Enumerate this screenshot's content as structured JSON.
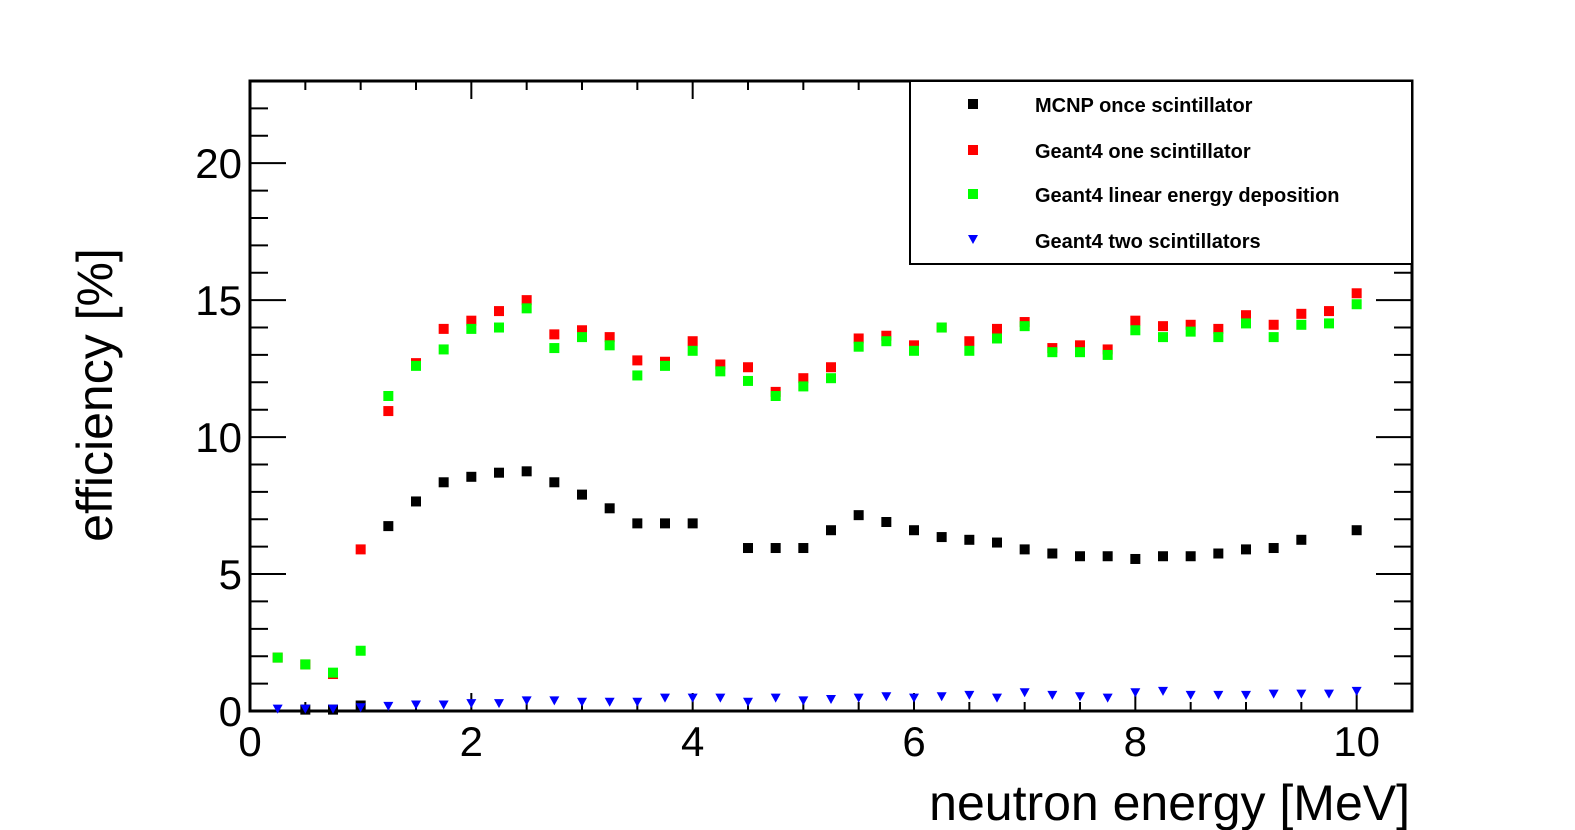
{
  "chart_data": {
    "type": "scatter",
    "title": "",
    "xlabel": "neutron energy [MeV]",
    "ylabel": "efficiency [%]",
    "xlim": [
      0,
      10.5
    ],
    "ylim": [
      0,
      23
    ],
    "x_ticks": [
      "0",
      "2",
      "4",
      "6",
      "8",
      "10"
    ],
    "y_ticks": [
      "0",
      "5",
      "10",
      "15",
      "20"
    ],
    "grid": false,
    "legend_position": "top-right",
    "series": [
      {
        "name": "MCNP once scintillator",
        "color": "#000000",
        "marker": "square",
        "x": [
          0.5,
          0.75,
          1.0,
          1.25,
          1.5,
          1.75,
          2.0,
          2.25,
          2.5,
          2.75,
          3.0,
          3.25,
          3.5,
          3.75,
          4.0,
          4.5,
          4.75,
          5.0,
          5.25,
          5.5,
          5.75,
          6.0,
          6.25,
          6.5,
          6.75,
          7.0,
          7.25,
          7.5,
          7.75,
          8.0,
          8.25,
          8.5,
          8.75,
          9.0,
          9.25,
          9.5,
          10.0
        ],
        "y": [
          0.05,
          0.05,
          0.2,
          6.75,
          7.65,
          8.35,
          8.55,
          8.7,
          8.75,
          8.35,
          7.9,
          7.4,
          6.85,
          6.85,
          6.85,
          5.95,
          5.95,
          5.95,
          6.6,
          7.15,
          6.9,
          6.6,
          6.35,
          6.25,
          6.15,
          5.9,
          5.75,
          5.65,
          5.65,
          5.55,
          5.65,
          5.65,
          5.75,
          5.9,
          5.95,
          6.25,
          6.6
        ]
      },
      {
        "name": "Geant4 one scintillator",
        "color": "#ff0000",
        "marker": "square",
        "x": [
          0.25,
          0.5,
          0.75,
          1.0,
          1.25,
          1.5,
          1.75,
          2.0,
          2.25,
          2.5,
          2.75,
          3.0,
          3.25,
          3.5,
          3.75,
          4.0,
          4.25,
          4.5,
          4.75,
          5.0,
          5.25,
          5.5,
          5.75,
          6.0,
          6.25,
          6.5,
          6.75,
          7.0,
          7.25,
          7.5,
          7.75,
          8.0,
          8.25,
          8.5,
          8.75,
          9.0,
          9.25,
          9.5,
          9.75,
          10.0
        ],
        "y": [
          1.95,
          1.7,
          1.35,
          5.9,
          10.95,
          12.7,
          13.95,
          14.25,
          14.6,
          15.0,
          13.75,
          13.9,
          13.65,
          12.8,
          12.75,
          13.5,
          12.65,
          12.55,
          11.65,
          12.15,
          12.55,
          13.6,
          13.7,
          13.35,
          14.0,
          13.5,
          13.95,
          14.2,
          13.25,
          13.35,
          13.2,
          14.25,
          14.05,
          14.1,
          13.95,
          14.45,
          14.1,
          14.5,
          14.6,
          15.25
        ]
      },
      {
        "name": "Geant4 linear energy deposition",
        "color": "#00ff00",
        "marker": "square",
        "x": [
          0.25,
          0.5,
          0.75,
          1.0,
          1.25,
          1.5,
          1.75,
          2.0,
          2.25,
          2.5,
          2.75,
          3.0,
          3.25,
          3.5,
          3.75,
          4.0,
          4.25,
          4.5,
          4.75,
          5.0,
          5.25,
          5.5,
          5.75,
          6.0,
          6.25,
          6.5,
          6.75,
          7.0,
          7.25,
          7.5,
          7.75,
          8.0,
          8.25,
          8.5,
          8.75,
          9.0,
          9.25,
          9.5,
          9.75,
          10.0
        ],
        "y": [
          1.95,
          1.7,
          1.4,
          2.2,
          11.5,
          12.6,
          13.2,
          13.95,
          14.0,
          14.7,
          13.25,
          13.65,
          13.35,
          12.25,
          12.6,
          13.15,
          12.4,
          12.05,
          11.5,
          11.85,
          12.15,
          13.3,
          13.5,
          13.15,
          14.0,
          13.15,
          13.6,
          14.05,
          13.1,
          13.1,
          13.0,
          13.9,
          13.65,
          13.85,
          13.65,
          14.15,
          13.65,
          14.1,
          14.15,
          14.85
        ]
      },
      {
        "name": "Geant4 two scintillators",
        "color": "#0000ff",
        "marker": "triangle-down",
        "x": [
          0.25,
          0.5,
          0.75,
          1.0,
          1.25,
          1.5,
          1.75,
          2.0,
          2.25,
          2.5,
          2.75,
          3.0,
          3.25,
          3.5,
          3.75,
          4.0,
          4.25,
          4.5,
          4.75,
          5.0,
          5.25,
          5.5,
          5.75,
          6.0,
          6.25,
          6.5,
          6.75,
          7.0,
          7.25,
          7.5,
          7.75,
          8.0,
          8.25,
          8.5,
          8.75,
          9.0,
          9.25,
          9.5,
          9.75,
          10.0
        ],
        "y": [
          0.05,
          0.05,
          0.05,
          0.1,
          0.15,
          0.2,
          0.2,
          0.25,
          0.25,
          0.35,
          0.35,
          0.3,
          0.3,
          0.3,
          0.45,
          0.45,
          0.45,
          0.3,
          0.45,
          0.35,
          0.4,
          0.45,
          0.5,
          0.45,
          0.5,
          0.55,
          0.45,
          0.65,
          0.55,
          0.5,
          0.45,
          0.65,
          0.7,
          0.55,
          0.55,
          0.55,
          0.6,
          0.6,
          0.6,
          0.7
        ]
      }
    ]
  }
}
